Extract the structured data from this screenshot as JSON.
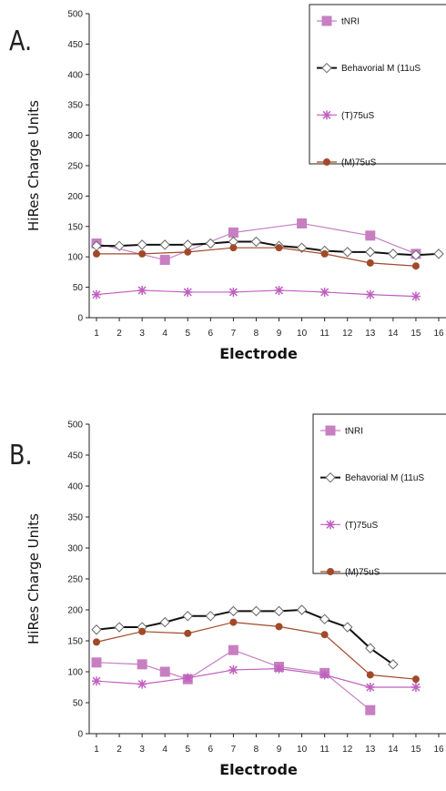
{
  "chart_data": [
    {
      "panel_label": "A.",
      "type": "line",
      "xlabel": "Electrode",
      "ylabel": "HiRes Charge Units",
      "xlim": [
        1,
        16
      ],
      "ylim": [
        0,
        500
      ],
      "x_ticks": [
        1,
        2,
        3,
        4,
        5,
        6,
        7,
        8,
        9,
        10,
        11,
        12,
        13,
        14,
        15,
        16
      ],
      "y_ticks": [
        0,
        50,
        100,
        150,
        200,
        250,
        300,
        350,
        400,
        450,
        500
      ],
      "legend_position": "top-right",
      "series": [
        {
          "name": "tNRI",
          "color": "#c77fc2",
          "marker": "square",
          "points": [
            [
              1,
              122
            ],
            [
              4,
              95
            ],
            [
              7,
              140
            ],
            [
              10,
              155
            ],
            [
              13,
              135
            ],
            [
              15,
              105
            ]
          ]
        },
        {
          "name": "Behavorial M (11uS",
          "color": "#111111",
          "marker": "diamond-open",
          "points": [
            [
              1,
              118
            ],
            [
              2,
              118
            ],
            [
              3,
              120
            ],
            [
              4,
              120
            ],
            [
              5,
              120
            ],
            [
              6,
              122
            ],
            [
              7,
              125
            ],
            [
              8,
              125
            ],
            [
              9,
              118
            ],
            [
              10,
              115
            ],
            [
              11,
              110
            ],
            [
              12,
              108
            ],
            [
              13,
              108
            ],
            [
              14,
              105
            ],
            [
              15,
              103
            ],
            [
              16,
              105
            ]
          ]
        },
        {
          "name": "(T)75uS",
          "color": "#c060c0",
          "marker": "star",
          "points": [
            [
              1,
              38
            ],
            [
              3,
              45
            ],
            [
              5,
              42
            ],
            [
              7,
              42
            ],
            [
              9,
              45
            ],
            [
              11,
              42
            ],
            [
              13,
              38
            ],
            [
              15,
              35
            ]
          ]
        },
        {
          "name": "(M)75uS",
          "color": "#a04a2a",
          "marker": "circle",
          "points": [
            [
              1,
              105
            ],
            [
              3,
              105
            ],
            [
              5,
              108
            ],
            [
              7,
              115
            ],
            [
              9,
              115
            ],
            [
              11,
              105
            ],
            [
              13,
              90
            ],
            [
              15,
              85
            ]
          ]
        }
      ]
    },
    {
      "panel_label": "B.",
      "type": "line",
      "xlabel": "Electrode",
      "ylabel": "HiRes Charge Units",
      "xlim": [
        1,
        16
      ],
      "ylim": [
        0,
        500
      ],
      "x_ticks": [
        1,
        2,
        3,
        4,
        5,
        6,
        7,
        8,
        9,
        10,
        11,
        12,
        13,
        14,
        15,
        16
      ],
      "y_ticks": [
        0,
        50,
        100,
        150,
        200,
        250,
        300,
        350,
        400,
        450,
        500
      ],
      "legend_position": "top-right",
      "series": [
        {
          "name": "tNRI",
          "color": "#c77fc2",
          "marker": "square",
          "points": [
            [
              1,
              115
            ],
            [
              3,
              112
            ],
            [
              4,
              100
            ],
            [
              5,
              88
            ],
            [
              7,
              135
            ],
            [
              9,
              108
            ],
            [
              11,
              98
            ],
            [
              13,
              38
            ]
          ]
        },
        {
          "name": "Behavorial M (11uS",
          "color": "#111111",
          "marker": "diamond-open",
          "points": [
            [
              1,
              168
            ],
            [
              2,
              172
            ],
            [
              3,
              172
            ],
            [
              4,
              180
            ],
            [
              5,
              190
            ],
            [
              6,
              190
            ],
            [
              7,
              198
            ],
            [
              8,
              198
            ],
            [
              9,
              198
            ],
            [
              10,
              200
            ],
            [
              11,
              185
            ],
            [
              12,
              172
            ],
            [
              13,
              138
            ],
            [
              14,
              112
            ]
          ]
        },
        {
          "name": "(T)75uS",
          "color": "#c060c0",
          "marker": "star",
          "points": [
            [
              1,
              85
            ],
            [
              3,
              80
            ],
            [
              5,
              90
            ],
            [
              7,
              103
            ],
            [
              9,
              105
            ],
            [
              11,
              95
            ],
            [
              13,
              75
            ],
            [
              15,
              75
            ]
          ]
        },
        {
          "name": "(M)75uS",
          "color": "#a04a2a",
          "marker": "circle",
          "points": [
            [
              1,
              148
            ],
            [
              3,
              165
            ],
            [
              5,
              162
            ],
            [
              7,
              180
            ],
            [
              9,
              173
            ],
            [
              11,
              160
            ],
            [
              13,
              95
            ],
            [
              15,
              88
            ]
          ]
        }
      ]
    }
  ]
}
